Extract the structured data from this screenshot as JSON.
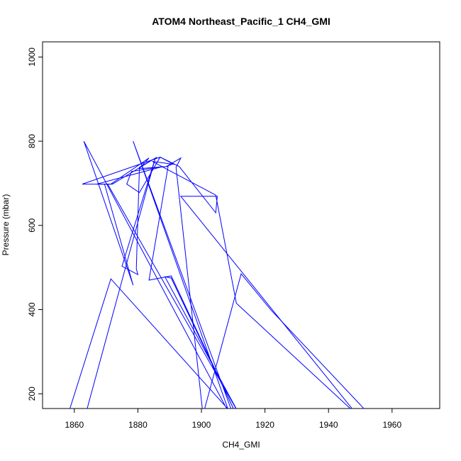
{
  "chart_data": {
    "type": "line",
    "title": "ATOM4 Northeast_Pacific_1 CH4_GMI",
    "xlabel": "CH4_GMI",
    "ylabel": "Pressure (mbar)",
    "xlim": [
      1850,
      1975
    ],
    "ylim": [
      1036,
      165
    ],
    "y_reversed": true,
    "x_ticks": [
      1860,
      1880,
      1900,
      1920,
      1940,
      1960
    ],
    "y_ticks": [
      200,
      400,
      600,
      800,
      1000
    ],
    "grid": false,
    "legend": "none",
    "series_color": "#0000ff",
    "marker": "open-circle",
    "series": [
      {
        "x": [
          1858,
          1871.5,
          1910,
          1878.5,
          1909,
          1863,
          1878.5,
          1869.5,
          1870.5,
          1912,
          1888.5,
          1890.5,
          1911,
          1890.5,
          1883.5,
          1889.5,
          1880.5,
          1883.5,
          1871.5,
          1862.5,
          1887.0,
          1893.0,
          1904.5,
          1905,
          1893.5,
          1949,
          1911,
          1904.5,
          1884.5,
          1891.5
        ],
        "y": [
          150,
          473,
          150,
          800,
          150,
          800,
          458,
          698,
          698,
          150,
          478,
          475,
          150,
          480,
          470,
          740,
          735,
          760,
          698,
          698,
          762,
          740,
          630,
          669,
          669,
          150,
          415,
          672,
          752,
          745
        ]
      },
      {
        "x": [
          1863.5,
          1885.5,
          1875,
          1880,
          1879.5,
          1880.5,
          1886.0,
          1872.0,
          1867,
          1883.0,
          1888.0,
          1878.0,
          1876.5,
          1880.5,
          1887.0,
          1891.0,
          1889.0,
          1893.5,
          1892.0,
          1900.5,
          1912.5,
          1922,
          1953,
          1908,
          1921
        ],
        "y": [
          150,
          760,
          503,
          483,
          497,
          738,
          762,
          698,
          698,
          730,
          740,
          728,
          698,
          678,
          762,
          746,
          740,
          760,
          738,
          150,
          485,
          398,
          150,
          150,
          150
        ]
      }
    ]
  }
}
